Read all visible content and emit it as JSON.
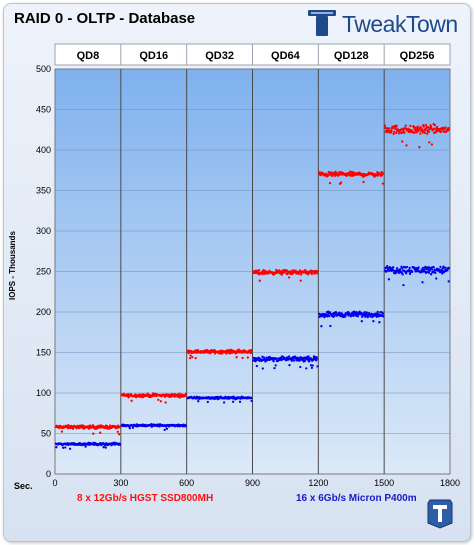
{
  "chart_data": {
    "type": "scatter",
    "title": "RAID 0 - OLTP - Database",
    "ylabel": "IOPS - Thousands",
    "xlabel": "Sec.",
    "xlim": [
      0,
      1800
    ],
    "ylim": [
      0,
      500
    ],
    "x_ticks": [
      0,
      300,
      600,
      900,
      1200,
      1500,
      1800
    ],
    "y_ticks": [
      0,
      50,
      100,
      150,
      200,
      250,
      300,
      350,
      400,
      450,
      500
    ],
    "grid": true,
    "segment_labels": [
      "QD8",
      "QD16",
      "QD32",
      "QD64",
      "QD128",
      "QD256"
    ],
    "series": [
      {
        "name": "8 x 12Gb/s HGST SSD800MH",
        "color": "#ff0000",
        "segments": [
          {
            "x_start": 0,
            "x_end": 300,
            "mean": 58,
            "spread": 3
          },
          {
            "x_start": 300,
            "x_end": 600,
            "mean": 97,
            "spread": 3
          },
          {
            "x_start": 600,
            "x_end": 900,
            "mean": 151,
            "spread": 3
          },
          {
            "x_start": 900,
            "x_end": 1200,
            "mean": 249,
            "spread": 4
          },
          {
            "x_start": 1200,
            "x_end": 1500,
            "mean": 370,
            "spread": 4
          },
          {
            "x_start": 1500,
            "x_end": 1800,
            "mean": 425,
            "spread": 8
          }
        ]
      },
      {
        "name": "16 x 6Gb/s Micron P400m",
        "color": "#0000ee",
        "segments": [
          {
            "x_start": 0,
            "x_end": 300,
            "mean": 37,
            "spread": 2
          },
          {
            "x_start": 300,
            "x_end": 600,
            "mean": 60,
            "spread": 2
          },
          {
            "x_start": 600,
            "x_end": 900,
            "mean": 94,
            "spread": 2
          },
          {
            "x_start": 900,
            "x_end": 1200,
            "mean": 142,
            "spread": 4
          },
          {
            "x_start": 1200,
            "x_end": 1500,
            "mean": 197,
            "spread": 5
          },
          {
            "x_start": 1500,
            "x_end": 1800,
            "mean": 252,
            "spread": 7
          }
        ]
      }
    ]
  },
  "logo": {
    "text": "TweakTown"
  }
}
